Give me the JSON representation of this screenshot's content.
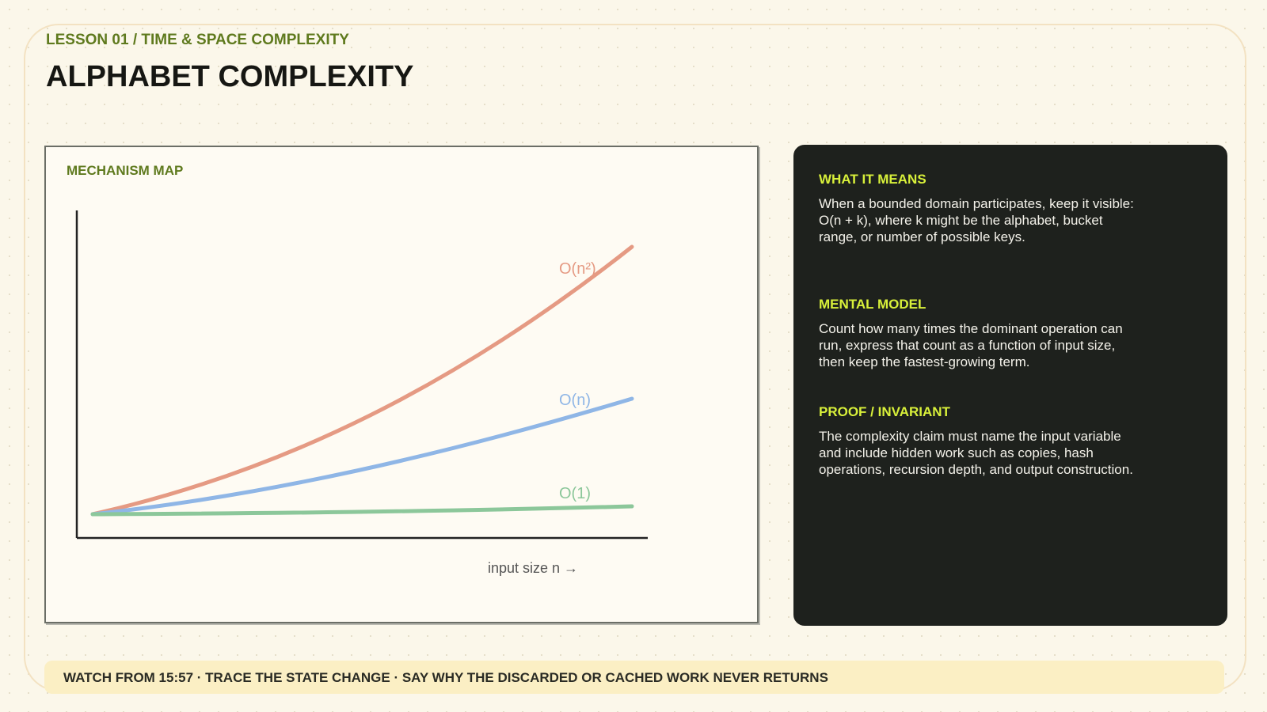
{
  "header": {
    "eyebrow": "LESSON 01 / TIME & SPACE COMPLEXITY",
    "title": "ALPHABET COMPLEXITY"
  },
  "mechanism_map": {
    "title": "MECHANISM MAP",
    "curves": [
      {
        "label": "O(n²)"
      },
      {
        "label": "O(n)"
      },
      {
        "label": "O(1)"
      }
    ],
    "x_axis_label": "input size n →"
  },
  "panel": {
    "sections": [
      {
        "heading": "WHAT IT MEANS",
        "body": "When a bounded domain participates, keep it visible: O(n + k), where k might be the alphabet, bucket range, or number of possible keys."
      },
      {
        "heading": "MENTAL MODEL",
        "body": "Count how many times the dominant operation can run, express that count as a function of input size, then keep the fastest-growing term."
      },
      {
        "heading": "PROOF / INVARIANT",
        "body": "The complexity claim must name the input variable and include hidden work such as copies, hash operations, recursion depth, and output construction."
      }
    ]
  },
  "footer": {
    "text": "WATCH FROM 15:57 · TRACE THE STATE CHANGE · SAY WHY THE DISCARDED OR CACHED WORK NEVER RETURNS"
  }
}
